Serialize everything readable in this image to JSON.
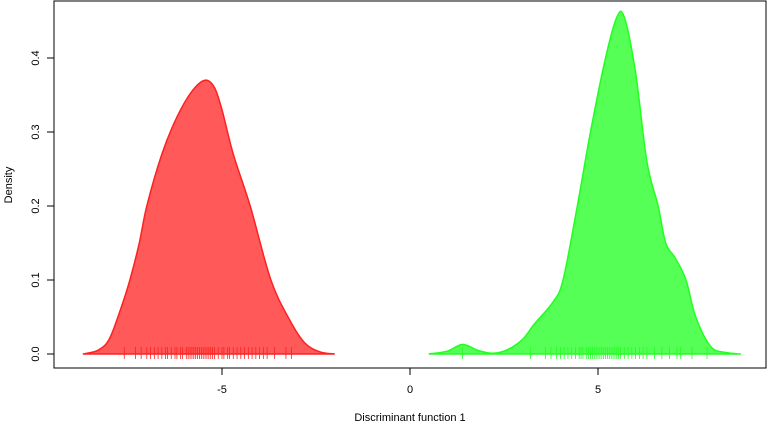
{
  "chart_data": {
    "type": "area",
    "title": "",
    "xlabel": "Discriminant function 1",
    "ylabel": "Density",
    "xlim": [
      -9.3,
      9.4
    ],
    "ylim": [
      -0.02,
      0.475
    ],
    "xticks": [
      -5,
      0,
      5
    ],
    "xtick_labels": [
      "-5",
      "0",
      "5"
    ],
    "yticks": [
      0.0,
      0.1,
      0.2,
      0.3,
      0.4
    ],
    "ytick_labels": [
      "0.0",
      "0.1",
      "0.2",
      "0.3",
      "0.4"
    ],
    "grid": false,
    "legend": "none",
    "series": [
      {
        "color": "#ff2020",
        "fill": "#ff5050",
        "x": [
          -8.7,
          -8.3,
          -8.0,
          -7.7,
          -7.45,
          -7.2,
          -7.0,
          -6.6,
          -6.2,
          -5.8,
          -5.45,
          -5.2,
          -5.0,
          -4.7,
          -4.25,
          -3.7,
          -3.2,
          -2.8,
          -2.4,
          -2.0
        ],
        "y": [
          0,
          0.005,
          0.02,
          0.06,
          0.1,
          0.15,
          0.2,
          0.27,
          0.32,
          0.355,
          0.37,
          0.36,
          0.33,
          0.27,
          0.2,
          0.1,
          0.046,
          0.015,
          0.003,
          0
        ],
        "rug": [
          -7.6,
          -7.3,
          -7.15,
          -7.0,
          -6.9,
          -6.8,
          -6.7,
          -6.6,
          -6.5,
          -6.45,
          -6.35,
          -6.25,
          -6.2,
          -6.1,
          -6.05,
          -5.95,
          -5.9,
          -5.85,
          -5.8,
          -5.75,
          -5.7,
          -5.65,
          -5.6,
          -5.55,
          -5.5,
          -5.45,
          -5.4,
          -5.35,
          -5.3,
          -5.25,
          -5.2,
          -5.1,
          -5.0,
          -4.95,
          -4.85,
          -4.8,
          -4.7,
          -4.6,
          -4.5,
          -4.4,
          -4.3,
          -4.2,
          -4.1,
          -4.0,
          -3.9,
          -3.8,
          -3.6,
          -3.3,
          -3.15
        ]
      },
      {
        "color": "#20ff20",
        "fill": "#4dff4d",
        "x": [
          0.5,
          1.0,
          1.4,
          1.8,
          2.2,
          2.6,
          3.0,
          3.3,
          3.8,
          4.07,
          4.45,
          4.8,
          5.2,
          5.5,
          5.7,
          6.0,
          6.3,
          6.6,
          6.8,
          7.05,
          7.34,
          7.6,
          8.0,
          8.4,
          8.8
        ],
        "y": [
          0,
          0.004,
          0.013,
          0.005,
          0.001,
          0.006,
          0.02,
          0.04,
          0.07,
          0.1,
          0.2,
          0.3,
          0.4,
          0.455,
          0.455,
          0.38,
          0.26,
          0.2,
          0.15,
          0.13,
          0.1,
          0.05,
          0.01,
          0.002,
          0
        ],
        "rug": [
          1.4,
          3.2,
          3.6,
          3.75,
          3.9,
          4.0,
          4.1,
          4.2,
          4.3,
          4.4,
          4.5,
          4.55,
          4.6,
          4.7,
          4.75,
          4.8,
          4.85,
          4.9,
          4.95,
          5.0,
          5.05,
          5.1,
          5.15,
          5.2,
          5.25,
          5.3,
          5.35,
          5.4,
          5.45,
          5.5,
          5.55,
          5.6,
          5.7,
          5.8,
          5.9,
          6.0,
          6.1,
          6.2,
          6.3,
          6.5,
          6.7,
          6.9,
          7.1,
          7.2,
          7.5,
          7.9
        ]
      }
    ]
  }
}
